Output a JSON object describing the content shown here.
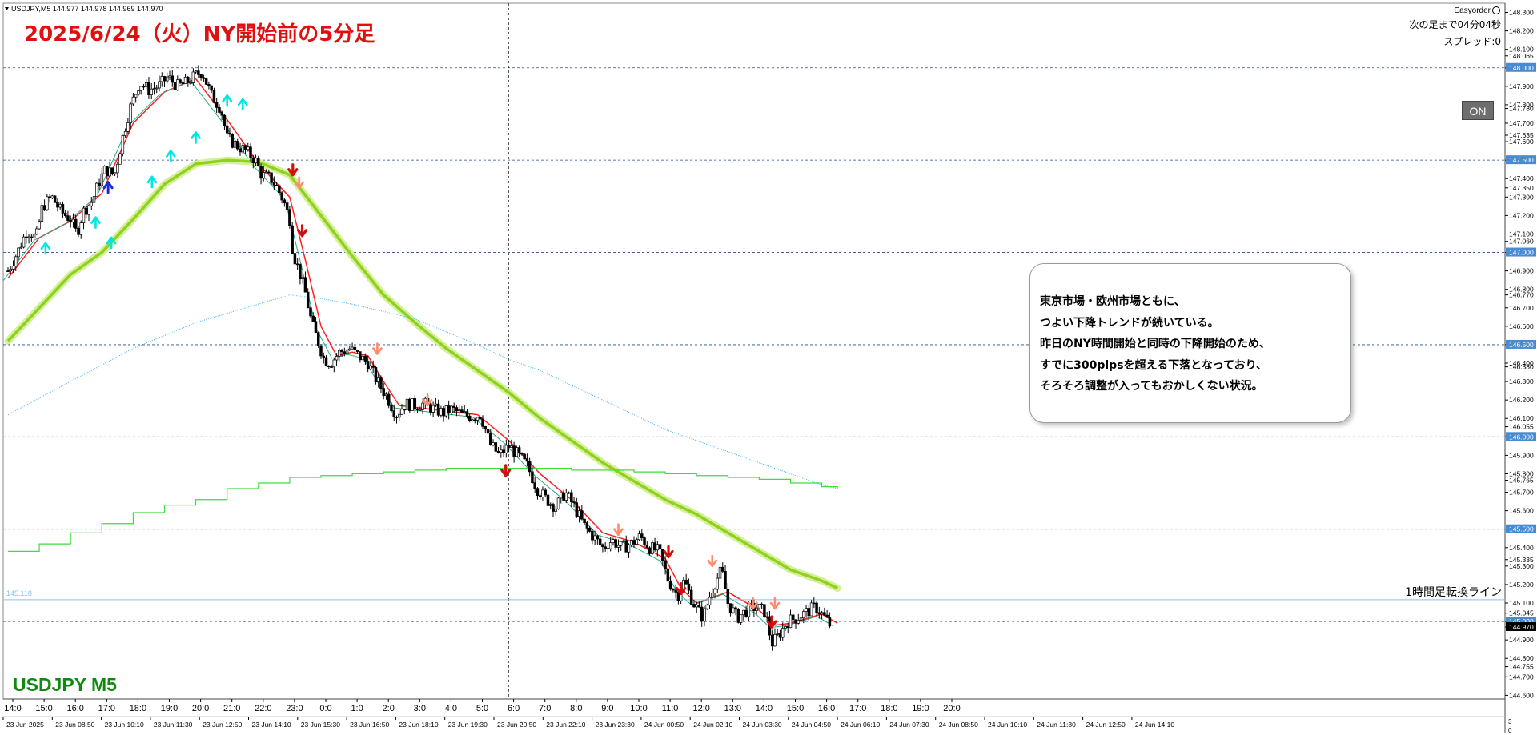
{
  "header": {
    "symbol_info": "USDJPY,M5  144.977 144.978 144.969 144.970",
    "main_title": "2025/6/24（火）NY開始前の5分足",
    "symbol_label": "USDJPY M5",
    "ea_name": "Easyorder",
    "next_bar": "次の足まで04分04秒",
    "spread": "スプレッド:0",
    "on_button": "ON"
  },
  "note": {
    "lines": [
      "東京市場・欧州市場ともに、",
      "つよい下降トレンドが続いている。",
      "昨日のNY時間開始と同時の下降開始のため、",
      "すでに300pipsを超える下落となっており、",
      "そろそろ調整が入ってもおかしくない状況。"
    ]
  },
  "h1_line": {
    "label": "1時間足転換ライン",
    "left_value": "145.118",
    "price": 145.118
  },
  "colors": {
    "candle": "#000000",
    "ma_fast": "#ff2020",
    "ma_slow": "#22aa88",
    "ma_long": "#8cd21e",
    "ma_long_glow": "#d8ef9a",
    "ma_cyan": "#38b0ee",
    "ma_green": "#3ddd3d",
    "h1_line": "#7ec8f0",
    "grid_dash": "#2a4a8a",
    "price_tag": "#4a8ad0",
    "current_tag": "#000000",
    "up_arrow": "#00e5e5",
    "down_arrow": "#ff8c6c",
    "down_arrow_strong": "#d01010",
    "title_red": "#e01010",
    "symbol_green": "#0f8a0f"
  },
  "chart_data": {
    "type": "candlestick",
    "symbol": "USDJPY",
    "timeframe": "M5",
    "ohlc_header": {
      "open": 144.977,
      "high": 144.978,
      "low": 144.969,
      "close": 144.97
    },
    "current_price": 144.97,
    "ylim": [
      144.6,
      148.3
    ],
    "y_ticks": [
      "148.300",
      "148.200",
      "148.100",
      "148.065",
      "148.000",
      "147.900",
      "147.800",
      "147.780",
      "147.700",
      "147.635",
      "147.600",
      "147.500",
      "147.400",
      "147.350",
      "147.300",
      "147.200",
      "147.100",
      "147.060",
      "147.000",
      "146.900",
      "146.800",
      "146.770",
      "146.700",
      "146.600",
      "146.500",
      "146.400",
      "146.380",
      "146.300",
      "146.200",
      "146.100",
      "146.055",
      "146.000",
      "145.900",
      "145.800",
      "145.765",
      "145.700",
      "145.600",
      "145.500",
      "145.400",
      "145.335",
      "145.300",
      "145.200",
      "145.100",
      "145.045",
      "145.000",
      "144.970",
      "144.900",
      "144.800",
      "144.755",
      "144.700",
      "144.600"
    ],
    "highlight_ticks": [
      "148.000",
      "147.500",
      "147.000",
      "146.500",
      "146.000",
      "145.500",
      "145.000"
    ],
    "x_labels_top": [
      "14:0",
      "15:0",
      "16:0",
      "17:0",
      "18:0",
      "19:0",
      "20:0",
      "21:0",
      "22:0",
      "23:0",
      "0:0",
      "1:0",
      "2:0",
      "3:0",
      "4:0",
      "5:0",
      "6:0",
      "7:0",
      "8:0",
      "9:0",
      "10:0",
      "11:0",
      "12:0",
      "13:0",
      "14:0",
      "15:0",
      "16:0",
      "17:0",
      "18:0",
      "19:0",
      "20:0"
    ],
    "x_labels_bottom": [
      "23 Jun 2025",
      "23 Jun 08:50",
      "23 Jun 10:10",
      "23 Jun 11:30",
      "23 Jun 12:50",
      "23 Jun 14:10",
      "23 Jun 15:30",
      "23 Jun 16:50",
      "23 Jun 18:10",
      "23 Jun 19:30",
      "23 Jun 20:50",
      "23 Jun 22:10",
      "23 Jun 23:30",
      "24 Jun 00:50",
      "24 Jun 02:10",
      "24 Jun 03:30",
      "24 Jun 04:50",
      "24 Jun 06:10",
      "24 Jun 07:30",
      "24 Jun 08:50",
      "24 Jun 10:10",
      "24 Jun 11:30",
      "24 Jun 12:50",
      "24 Jun 14:10"
    ],
    "close_path": [
      [
        14.0,
        146.9
      ],
      [
        14.3,
        147.0
      ],
      [
        14.6,
        147.12
      ],
      [
        14.9,
        147.08
      ],
      [
        15.1,
        147.25
      ],
      [
        15.4,
        147.3
      ],
      [
        15.7,
        147.22
      ],
      [
        16.0,
        147.18
      ],
      [
        16.2,
        147.1
      ],
      [
        16.4,
        147.22
      ],
      [
        16.7,
        147.28
      ],
      [
        16.9,
        147.38
      ],
      [
        17.1,
        147.45
      ],
      [
        17.4,
        147.42
      ],
      [
        17.7,
        147.65
      ],
      [
        17.9,
        147.78
      ],
      [
        18.2,
        147.92
      ],
      [
        18.5,
        147.88
      ],
      [
        18.8,
        147.9
      ],
      [
        19.1,
        147.95
      ],
      [
        19.4,
        147.9
      ],
      [
        19.7,
        147.92
      ],
      [
        20.0,
        147.96
      ],
      [
        20.2,
        147.98
      ],
      [
        20.5,
        147.85
      ],
      [
        20.8,
        147.78
      ],
      [
        21.0,
        147.62
      ],
      [
        21.3,
        147.58
      ],
      [
        21.6,
        147.55
      ],
      [
        21.9,
        147.5
      ],
      [
        22.1,
        147.42
      ],
      [
        22.4,
        147.4
      ],
      [
        22.6,
        147.35
      ],
      [
        22.8,
        147.28
      ],
      [
        23.0,
        147.18
      ],
      [
        23.1,
        147.0
      ],
      [
        23.3,
        146.9
      ],
      [
        23.5,
        146.78
      ],
      [
        23.7,
        146.62
      ],
      [
        23.9,
        146.52
      ],
      [
        24.1,
        146.42
      ],
      [
        24.3,
        146.4
      ],
      [
        24.6,
        146.46
      ],
      [
        24.9,
        146.48
      ],
      [
        25.2,
        146.44
      ],
      [
        25.5,
        146.4
      ],
      [
        25.8,
        146.3
      ],
      [
        26.1,
        146.22
      ],
      [
        26.4,
        146.12
      ],
      [
        26.7,
        146.18
      ],
      [
        27.0,
        146.17
      ],
      [
        27.3,
        146.18
      ],
      [
        27.6,
        146.15
      ],
      [
        27.9,
        146.13
      ],
      [
        28.2,
        146.15
      ],
      [
        28.5,
        146.12
      ],
      [
        28.8,
        146.11
      ],
      [
        29.1,
        146.12
      ],
      [
        29.4,
        145.96
      ],
      [
        29.7,
        145.9
      ],
      [
        30.0,
        145.95
      ],
      [
        30.3,
        145.9
      ],
      [
        30.6,
        145.84
      ],
      [
        30.9,
        145.72
      ],
      [
        31.2,
        145.66
      ],
      [
        31.5,
        145.62
      ],
      [
        31.8,
        145.7
      ],
      [
        32.1,
        145.62
      ],
      [
        32.4,
        145.52
      ],
      [
        32.7,
        145.46
      ],
      [
        33.0,
        145.4
      ],
      [
        33.3,
        145.44
      ],
      [
        33.6,
        145.4
      ],
      [
        33.9,
        145.42
      ],
      [
        34.2,
        145.46
      ],
      [
        34.5,
        145.4
      ],
      [
        34.8,
        145.38
      ],
      [
        35.1,
        145.22
      ],
      [
        35.4,
        145.14
      ],
      [
        35.6,
        145.22
      ],
      [
        35.9,
        145.1
      ],
      [
        36.2,
        145.02
      ],
      [
        36.5,
        145.18
      ],
      [
        36.8,
        145.28
      ],
      [
        37.0,
        145.1
      ],
      [
        37.3,
        145.02
      ],
      [
        37.6,
        145.06
      ],
      [
        37.9,
        145.08
      ],
      [
        38.2,
        145.05
      ],
      [
        38.4,
        144.88
      ],
      [
        38.6,
        144.92
      ],
      [
        38.9,
        145.0
      ],
      [
        39.2,
        145.02
      ],
      [
        39.5,
        145.05
      ],
      [
        39.8,
        145.08
      ],
      [
        40.1,
        145.02
      ],
      [
        40.3,
        144.97
      ]
    ],
    "series": [
      {
        "name": "MA fast",
        "kind": "line",
        "values": [
          [
            14.0,
            146.86
          ],
          [
            15.0,
            147.08
          ],
          [
            16.0,
            147.17
          ],
          [
            17.0,
            147.32
          ],
          [
            18.0,
            147.7
          ],
          [
            19.0,
            147.87
          ],
          [
            20.0,
            147.94
          ],
          [
            21.0,
            147.72
          ],
          [
            22.0,
            147.48
          ],
          [
            23.0,
            147.3
          ],
          [
            23.5,
            146.96
          ],
          [
            24.0,
            146.6
          ],
          [
            24.5,
            146.44
          ],
          [
            25.0,
            146.46
          ],
          [
            25.5,
            146.44
          ],
          [
            26.0,
            146.3
          ],
          [
            26.5,
            146.17
          ],
          [
            27.0,
            146.16
          ],
          [
            28.0,
            146.14
          ],
          [
            29.0,
            146.12
          ],
          [
            30.0,
            145.98
          ],
          [
            31.0,
            145.8
          ],
          [
            32.0,
            145.66
          ],
          [
            33.0,
            145.48
          ],
          [
            34.0,
            145.43
          ],
          [
            35.0,
            145.34
          ],
          [
            35.5,
            145.18
          ],
          [
            36.0,
            145.1
          ],
          [
            37.0,
            145.16
          ],
          [
            38.0,
            145.06
          ],
          [
            38.5,
            144.98
          ],
          [
            39.0,
            144.99
          ],
          [
            40.0,
            145.04
          ],
          [
            40.5,
            144.99
          ]
        ]
      },
      {
        "name": "MA long",
        "kind": "thick",
        "values": [
          [
            14.0,
            146.52
          ],
          [
            15.0,
            146.7
          ],
          [
            16.0,
            146.88
          ],
          [
            17.0,
            147.0
          ],
          [
            18.0,
            147.18
          ],
          [
            19.0,
            147.37
          ],
          [
            20.0,
            147.48
          ],
          [
            21.0,
            147.5
          ],
          [
            22.0,
            147.49
          ],
          [
            23.0,
            147.42
          ],
          [
            24.0,
            147.2
          ],
          [
            25.0,
            146.98
          ],
          [
            26.0,
            146.77
          ],
          [
            27.0,
            146.62
          ],
          [
            28.0,
            146.48
          ],
          [
            29.0,
            146.36
          ],
          [
            30.0,
            146.24
          ],
          [
            31.0,
            146.1
          ],
          [
            32.0,
            145.98
          ],
          [
            33.0,
            145.86
          ],
          [
            34.0,
            145.76
          ],
          [
            35.0,
            145.66
          ],
          [
            36.0,
            145.58
          ],
          [
            37.0,
            145.48
          ],
          [
            38.0,
            145.38
          ],
          [
            39.0,
            145.28
          ],
          [
            40.0,
            145.22
          ],
          [
            40.5,
            145.18
          ]
        ]
      },
      {
        "name": "MA cyan",
        "kind": "dotted",
        "values": [
          [
            14.0,
            146.12
          ],
          [
            16.0,
            146.3
          ],
          [
            18.0,
            146.48
          ],
          [
            20.0,
            146.62
          ],
          [
            22.0,
            146.72
          ],
          [
            23.0,
            146.77
          ],
          [
            24.0,
            146.75
          ],
          [
            25.0,
            146.72
          ],
          [
            26.0,
            146.68
          ],
          [
            27.0,
            146.64
          ],
          [
            28.0,
            146.57
          ],
          [
            29.0,
            146.5
          ],
          [
            30.0,
            146.42
          ],
          [
            31.0,
            146.36
          ],
          [
            32.0,
            146.28
          ],
          [
            33.0,
            146.2
          ],
          [
            34.0,
            146.12
          ],
          [
            35.0,
            146.04
          ],
          [
            36.0,
            145.98
          ],
          [
            37.0,
            145.92
          ],
          [
            38.0,
            145.86
          ],
          [
            39.0,
            145.8
          ],
          [
            40.0,
            145.74
          ],
          [
            40.5,
            145.72
          ]
        ]
      },
      {
        "name": "MA green",
        "kind": "step",
        "values": [
          [
            14.0,
            145.38
          ],
          [
            15.0,
            145.42
          ],
          [
            16.0,
            145.48
          ],
          [
            17.0,
            145.53
          ],
          [
            18.0,
            145.59
          ],
          [
            19.0,
            145.63
          ],
          [
            20.0,
            145.66
          ],
          [
            21.0,
            145.72
          ],
          [
            22.0,
            145.75
          ],
          [
            23.0,
            145.78
          ],
          [
            24.0,
            145.79
          ],
          [
            25.0,
            145.8
          ],
          [
            26.0,
            145.81
          ],
          [
            27.0,
            145.82
          ],
          [
            28.0,
            145.83
          ],
          [
            29.0,
            145.83
          ],
          [
            30.0,
            145.83
          ],
          [
            31.0,
            145.83
          ],
          [
            32.0,
            145.82
          ],
          [
            33.0,
            145.82
          ],
          [
            34.0,
            145.81
          ],
          [
            35.0,
            145.8
          ],
          [
            36.0,
            145.79
          ],
          [
            37.0,
            145.78
          ],
          [
            38.0,
            145.77
          ],
          [
            39.0,
            145.75
          ],
          [
            40.0,
            145.73
          ],
          [
            40.5,
            145.72
          ]
        ]
      }
    ],
    "up_arrows": [
      [
        15.2,
        147.02
      ],
      [
        16.8,
        147.16
      ],
      [
        17.3,
        147.05
      ],
      [
        18.6,
        147.38
      ],
      [
        19.2,
        147.52
      ],
      [
        20.0,
        147.62
      ],
      [
        21.0,
        147.82
      ],
      [
        21.5,
        147.8
      ]
    ],
    "down_arrows": [
      [
        23.3,
        147.38
      ],
      [
        25.8,
        146.48
      ],
      [
        27.4,
        146.2
      ],
      [
        33.5,
        145.5
      ],
      [
        36.5,
        145.33
      ],
      [
        37.8,
        145.1
      ],
      [
        38.5,
        145.1
      ]
    ],
    "down_arrows_strong": [
      [
        23.1,
        147.45
      ],
      [
        23.4,
        147.12
      ],
      [
        29.9,
        145.82
      ],
      [
        35.1,
        145.38
      ],
      [
        35.5,
        145.18
      ],
      [
        38.4,
        145.0
      ]
    ]
  }
}
